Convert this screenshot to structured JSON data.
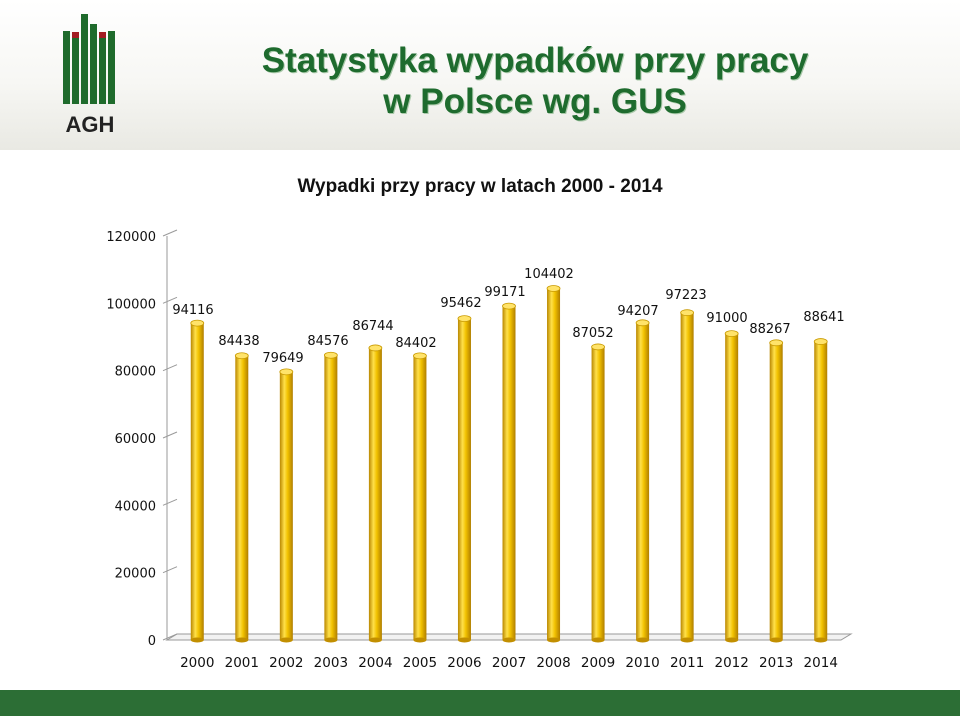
{
  "slide": {
    "title_line1": "Statystyka wypadków przy pracy",
    "title_line2": "w Polsce wg. GUS",
    "logo_text": "AGH"
  },
  "colors": {
    "title_green": "#1e6b2e",
    "bar_gold": "#f2c200",
    "footer_green": "#2c6e35",
    "logo_green": "#1f6b2c",
    "logo_red": "#a31d23"
  },
  "chart_data": {
    "type": "bar",
    "title": "Wypadki przy pracy w latach 2000 - 2014",
    "xlabel": "",
    "ylabel": "",
    "categories": [
      "2000",
      "2001",
      "2002",
      "2003",
      "2004",
      "2005",
      "2006",
      "2007",
      "2008",
      "2009",
      "2010",
      "2011",
      "2012",
      "2013",
      "2014"
    ],
    "values": [
      94116,
      84438,
      79649,
      84576,
      86744,
      84402,
      95462,
      99171,
      104402,
      87052,
      94207,
      97223,
      91000,
      88267,
      88641
    ],
    "y_ticks": [
      0,
      20000,
      40000,
      60000,
      80000,
      100000,
      120000
    ],
    "ylim": [
      0,
      120000
    ],
    "grid": false,
    "legend": "none",
    "data_labels": true
  }
}
